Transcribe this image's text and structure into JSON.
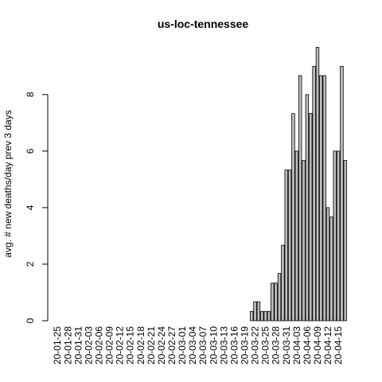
{
  "chart_data": {
    "type": "bar",
    "title": "us-loc-tennessee",
    "y_label": "avg. # new deaths/day prev  3  days",
    "categories": [
      "20-01-25",
      null,
      null,
      "20-01-28",
      null,
      null,
      "20-01-31",
      null,
      null,
      "20-02-03",
      null,
      null,
      "20-02-06",
      null,
      null,
      "20-02-09",
      null,
      null,
      "20-02-12",
      null,
      null,
      "20-02-15",
      null,
      null,
      "20-02-18",
      null,
      null,
      "20-02-21",
      null,
      null,
      "20-02-24",
      null,
      null,
      "20-02-27",
      null,
      null,
      "20-03-01",
      null,
      null,
      "20-03-04",
      null,
      null,
      "20-03-07",
      null,
      null,
      "20-03-10",
      null,
      null,
      "20-03-13",
      null,
      null,
      "20-03-16",
      null,
      null,
      "20-03-19",
      null,
      null,
      "20-03-22",
      null,
      null,
      "20-03-25",
      null,
      null,
      "20-03-28",
      null,
      null,
      "20-03-31",
      null,
      null,
      "20-04-03",
      null,
      null,
      "20-04-06",
      null,
      null,
      "20-04-09",
      null,
      null,
      "20-04-12",
      null,
      null,
      "20-04-15",
      null,
      null
    ],
    "values": [
      0,
      0,
      0,
      0,
      0,
      0,
      0,
      0,
      0,
      0,
      0,
      0,
      0,
      0,
      0,
      0,
      0,
      0,
      0,
      0,
      0,
      0,
      0,
      0,
      0,
      0,
      0,
      0,
      0,
      0,
      0,
      0,
      0,
      0,
      0,
      0,
      0,
      0,
      0,
      0,
      0,
      0,
      0,
      0,
      0,
      0,
      0,
      0,
      0,
      0,
      0,
      0,
      0,
      0,
      0,
      0,
      0.33,
      0.67,
      0.67,
      0.33,
      0.33,
      0.33,
      1.33,
      1.33,
      1.67,
      2.67,
      5.33,
      5.33,
      7.33,
      6,
      8.67,
      5.67,
      8,
      7.33,
      9,
      9.67,
      8.67,
      8.67,
      4,
      3.67,
      6,
      6,
      9,
      5.67
    ],
    "color": "#bebebe",
    "ylim": [
      0,
      10.05
    ],
    "yticks": [
      0,
      2,
      4,
      6,
      8
    ]
  }
}
